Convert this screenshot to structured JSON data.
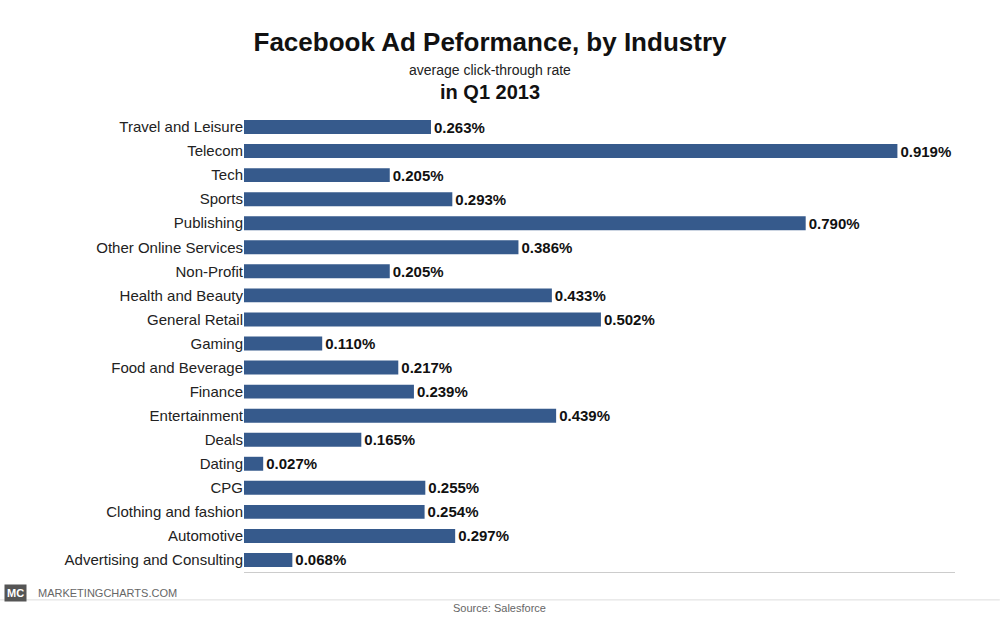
{
  "chart_data": {
    "type": "bar",
    "orientation": "horizontal",
    "title": "Facebook Ad Peformance, by Industry",
    "subtitle": "average click-through rate",
    "annotations": [
      "in Q1 2013",
      "MC",
      "MARKETINGCHARTS.COM",
      "Source: Salesforce"
    ],
    "categories": [
      "Travel and Leisure",
      "Telecom",
      "Tech",
      "Sports",
      "Publishing",
      "Other Online Services",
      "Non-Profit",
      "Health and Beauty",
      "General Retail",
      "Gaming",
      "Food and Beverage",
      "Finance",
      "Entertainment",
      "Deals",
      "Dating",
      "CPG",
      "Clothing and fashion",
      "Automotive",
      "Advertising and Consulting"
    ],
    "values": [
      0.263,
      0.919,
      0.205,
      0.293,
      0.79,
      0.386,
      0.205,
      0.433,
      0.502,
      0.11,
      0.217,
      0.239,
      0.439,
      0.165,
      0.027,
      0.255,
      0.254,
      0.297,
      0.068
    ],
    "value_labels": [
      "0.263%",
      "0.919%",
      "0.205%",
      "0.293%",
      "0.790%",
      "0.386%",
      "0.205%",
      "0.433%",
      "0.502%",
      "0.110%",
      "0.217%",
      "0.239%",
      "0.439%",
      "0.165%",
      "0.027%",
      "0.255%",
      "0.254%",
      "0.297%",
      "0.068%"
    ],
    "color": "#365a8c",
    "xlim": [
      0,
      1
    ],
    "xticks": [],
    "grid": false,
    "data_labels": true,
    "tick_labels": "y"
  }
}
